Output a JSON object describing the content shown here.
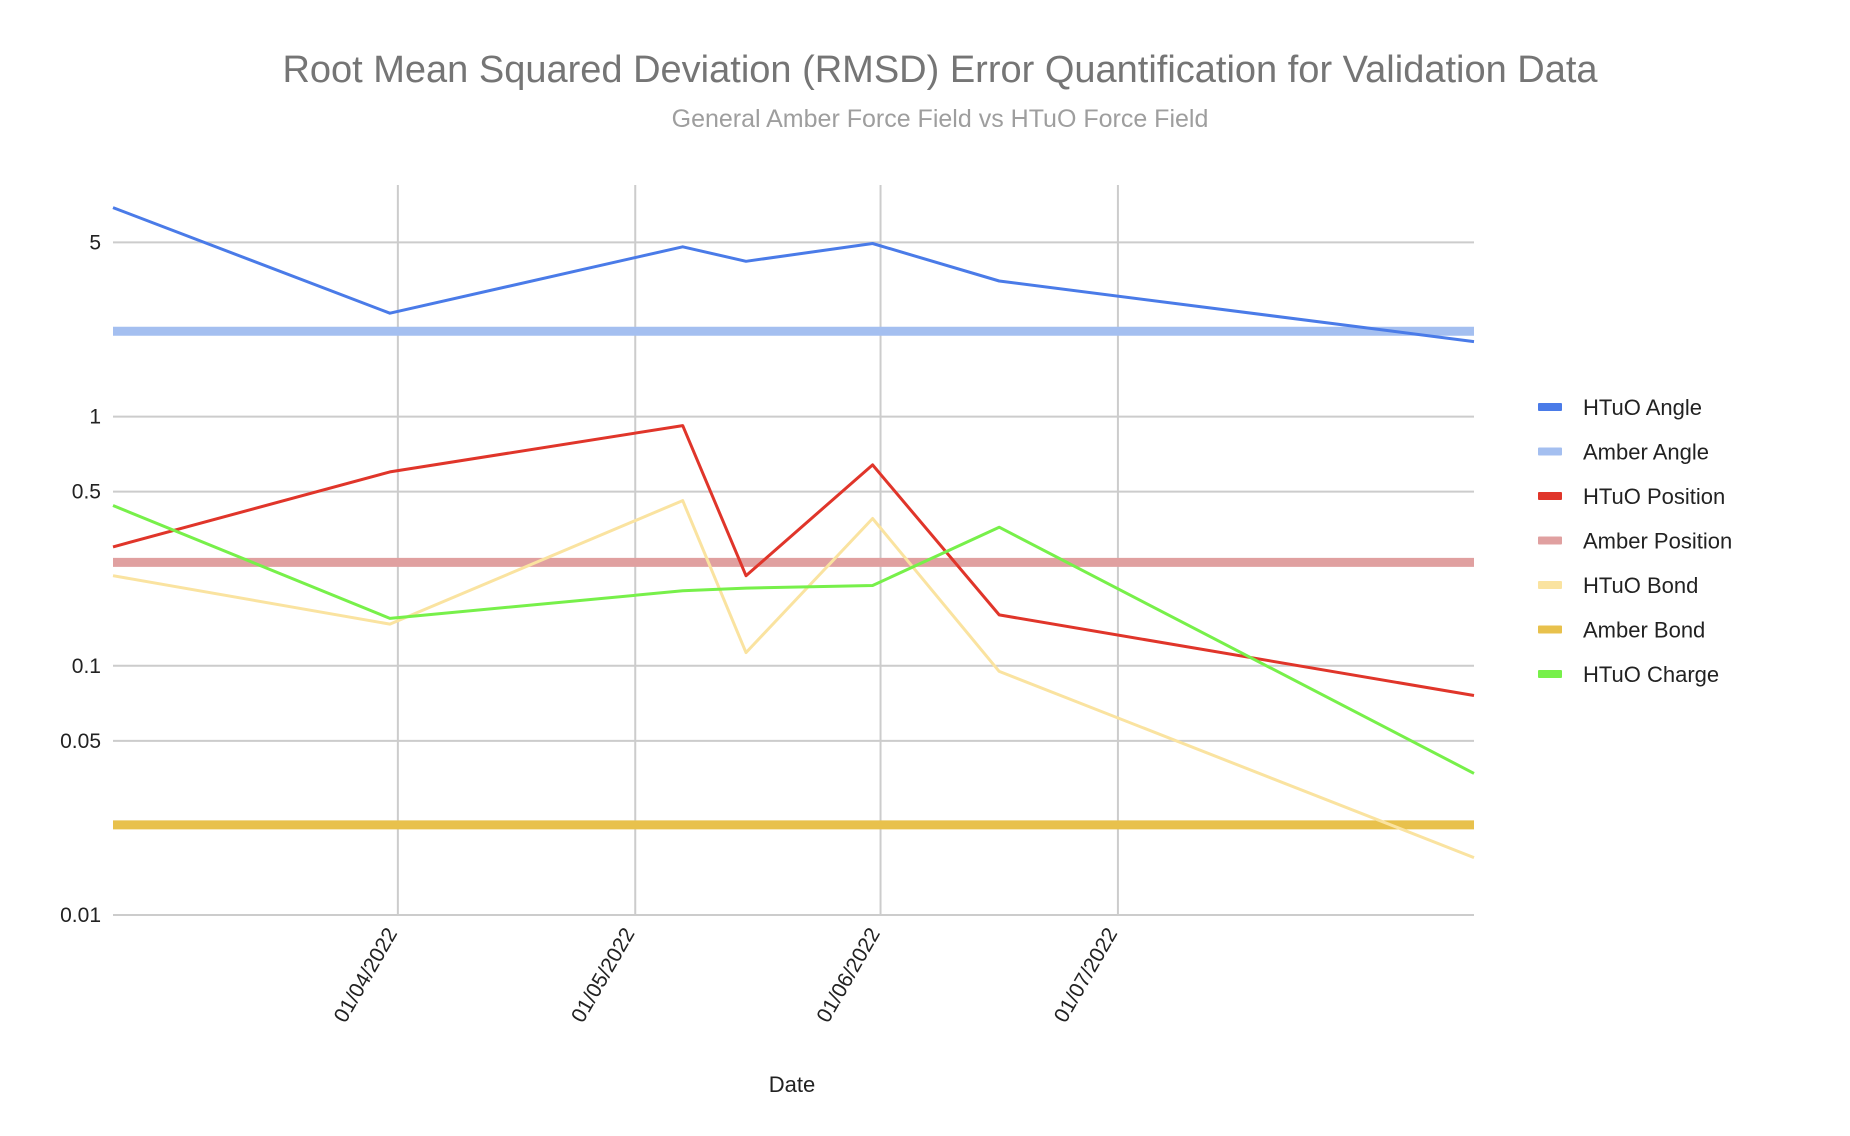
{
  "chart_data": {
    "type": "line",
    "title": "Root Mean Squared Deviation (RMSD) Error Quantification for Validation Data",
    "subtitle": "General Amber Force Field vs HTuO Force Field",
    "xlabel": "Date",
    "ylabel": "",
    "yscale": "log",
    "ylim": [
      0.01,
      8.5
    ],
    "yticks": [
      {
        "value": 0.01,
        "label": "0.01"
      },
      {
        "value": 0.05,
        "label": "0.05"
      },
      {
        "value": 0.1,
        "label": "0.1"
      },
      {
        "value": 0.5,
        "label": "0.5"
      },
      {
        "value": 1,
        "label": "1"
      },
      {
        "value": 5,
        "label": "5"
      }
    ],
    "xrange": [
      "2022-02-24",
      "2022-08-15"
    ],
    "xticks": [
      {
        "value": "2022-04-01",
        "label": "01/04/2022"
      },
      {
        "value": "2022-05-01",
        "label": "01/05/2022"
      },
      {
        "value": "2022-06-01",
        "label": "01/06/2022"
      },
      {
        "value": "2022-07-01",
        "label": "01/07/2022"
      }
    ],
    "grid": true,
    "legend_position": "right",
    "series": [
      {
        "name": "HTuO Angle",
        "color": "#4a7be8",
        "width": 3,
        "points": [
          [
            "2022-02-24",
            6.9
          ],
          [
            "2022-03-31",
            2.6
          ],
          [
            "2022-05-07",
            4.8
          ],
          [
            "2022-05-15",
            4.2
          ],
          [
            "2022-05-31",
            4.95
          ],
          [
            "2022-06-16",
            3.5
          ],
          [
            "2022-08-15",
            2.0
          ]
        ]
      },
      {
        "name": "Amber Angle",
        "color": "#a4bff0",
        "width": 9,
        "points": [
          [
            "2022-02-24",
            2.2
          ],
          [
            "2022-08-15",
            2.2
          ]
        ]
      },
      {
        "name": "HTuO Position",
        "color": "#e0352a",
        "width": 3,
        "points": [
          [
            "2022-02-24",
            0.3
          ],
          [
            "2022-03-31",
            0.6
          ],
          [
            "2022-05-07",
            0.92
          ],
          [
            "2022-05-15",
            0.23
          ],
          [
            "2022-05-31",
            0.64
          ],
          [
            "2022-06-16",
            0.16
          ],
          [
            "2022-08-15",
            0.076
          ]
        ]
      },
      {
        "name": "Amber Position",
        "color": "#e0a0a0",
        "width": 9,
        "points": [
          [
            "2022-02-24",
            0.26
          ],
          [
            "2022-08-15",
            0.26
          ]
        ]
      },
      {
        "name": "HTuO Bond",
        "color": "#fae3a0",
        "width": 3,
        "points": [
          [
            "2022-02-24",
            0.23
          ],
          [
            "2022-03-31",
            0.147
          ],
          [
            "2022-05-07",
            0.46
          ],
          [
            "2022-05-15",
            0.113
          ],
          [
            "2022-05-31",
            0.39
          ],
          [
            "2022-06-16",
            0.095
          ],
          [
            "2022-08-15",
            0.017
          ]
        ]
      },
      {
        "name": "Amber Bond",
        "color": "#e8c14c",
        "width": 9,
        "points": [
          [
            "2022-02-24",
            0.023
          ],
          [
            "2022-08-15",
            0.023
          ]
        ]
      },
      {
        "name": "HTuO Charge",
        "color": "#77f04a",
        "width": 3,
        "points": [
          [
            "2022-02-24",
            0.44
          ],
          [
            "2022-03-31",
            0.155
          ],
          [
            "2022-05-07",
            0.2
          ],
          [
            "2022-05-15",
            0.205
          ],
          [
            "2022-05-31",
            0.21
          ],
          [
            "2022-06-16",
            0.36
          ],
          [
            "2022-08-15",
            0.037
          ]
        ]
      }
    ]
  }
}
